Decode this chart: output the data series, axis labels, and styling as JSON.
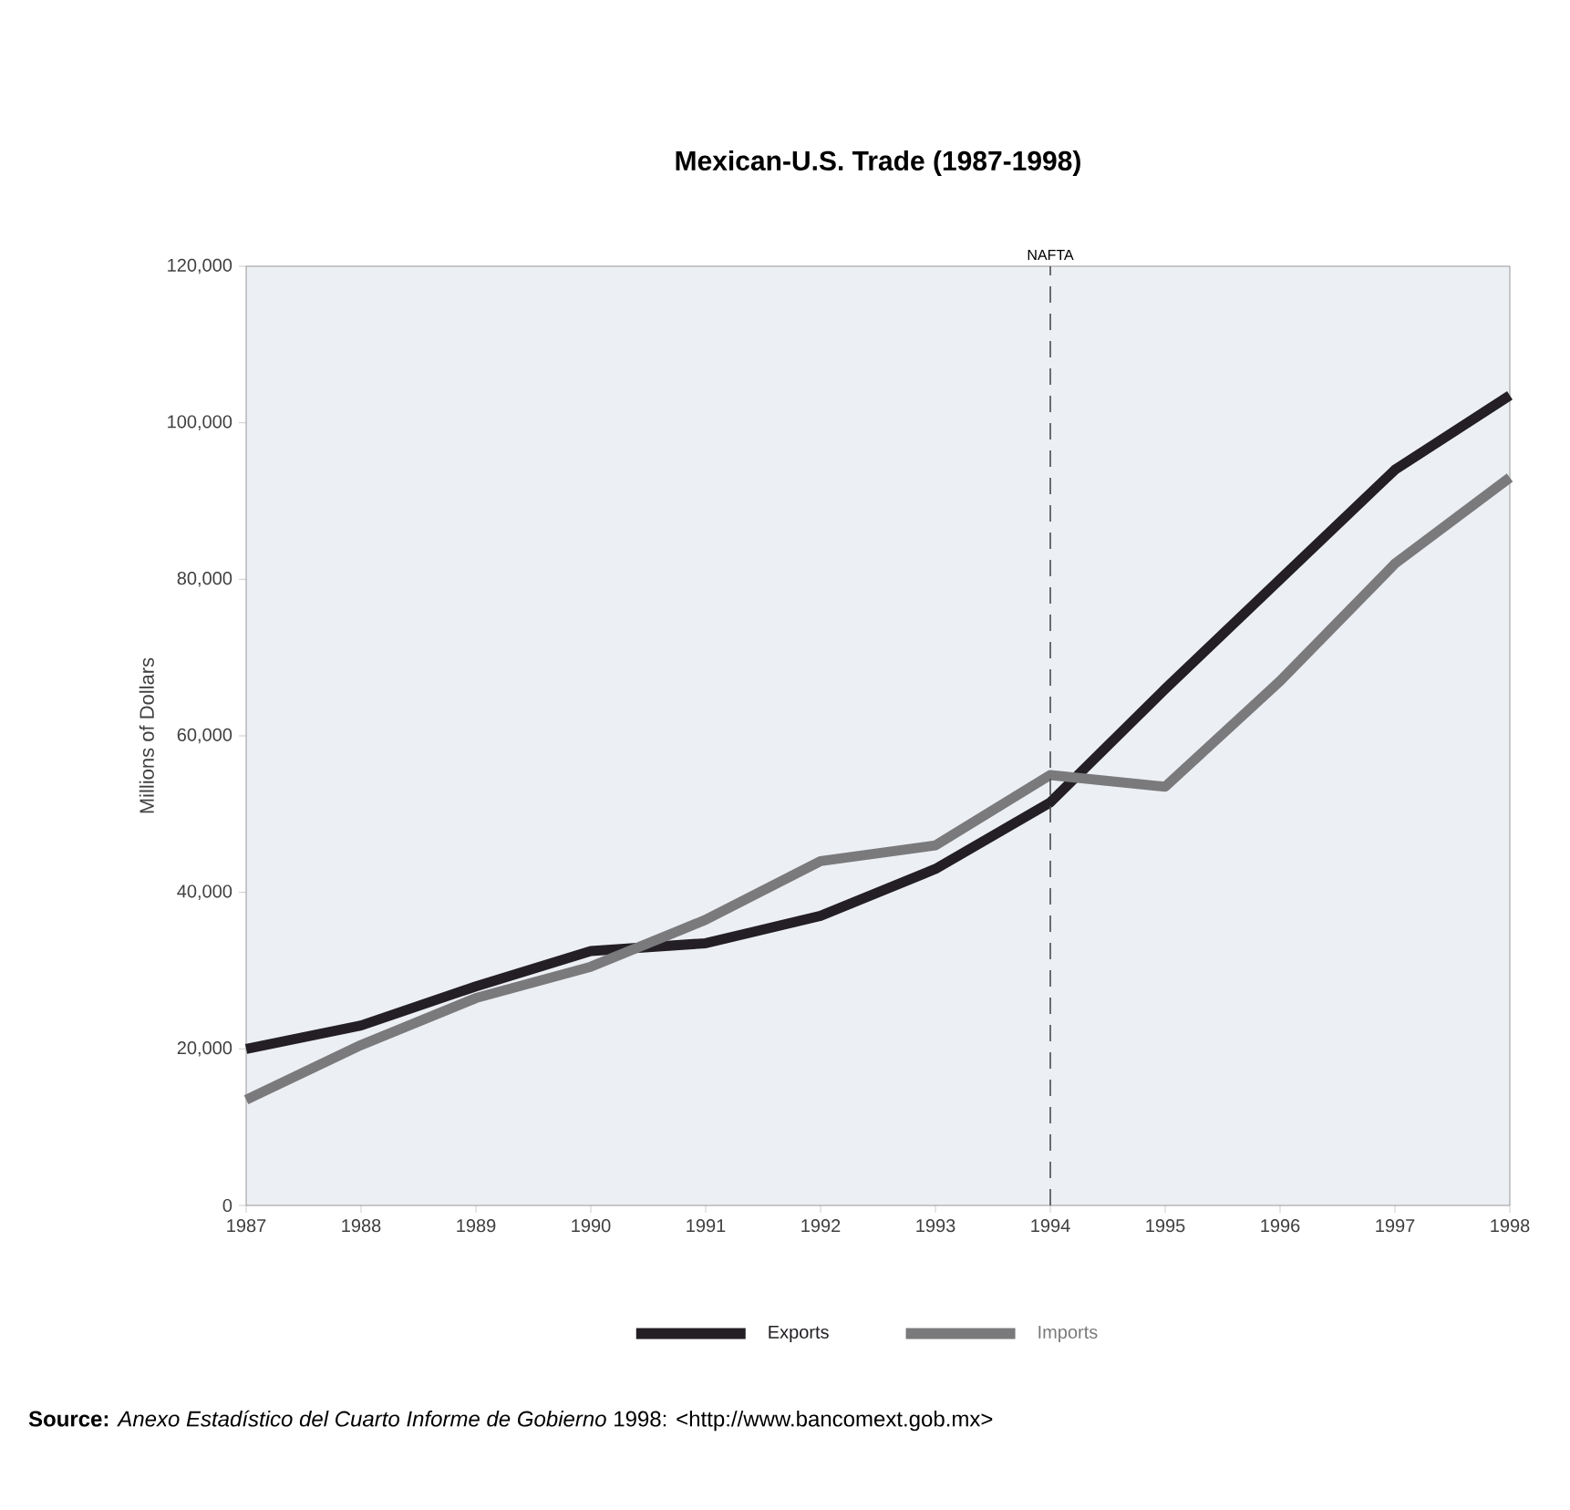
{
  "chart_data": {
    "type": "line",
    "title": "Mexican-U.S. Trade (1987-1998)",
    "ylabel": "Millions of Dollars",
    "categories": [
      "1987",
      "1988",
      "1989",
      "1990",
      "1991",
      "1992",
      "1993",
      "1994",
      "1995",
      "1996",
      "1997",
      "1998"
    ],
    "series": [
      {
        "name": "Exports",
        "color": "#231f24",
        "values": [
          20000,
          23000,
          28000,
          32500,
          33500,
          37000,
          43000,
          51500,
          66000,
          80000,
          94000,
          103500
        ]
      },
      {
        "name": "Imports",
        "color": "#7a7a7c",
        "values": [
          13500,
          20500,
          26500,
          30500,
          36500,
          44000,
          46000,
          55000,
          53500,
          67000,
          82000,
          93000
        ]
      }
    ],
    "ylim": [
      0,
      120000
    ],
    "yticks": [
      0,
      {
        "value": 20000,
        "label": "20,000"
      },
      {
        "value": 40000,
        "label": "40,000"
      },
      {
        "value": 60000,
        "label": "60,000"
      },
      {
        "value": 80000,
        "label": "80,000"
      },
      {
        "value": 100000,
        "label": "100,000"
      },
      {
        "value": 120000,
        "label": "120,000"
      }
    ],
    "ref_lines": [
      {
        "axis": "x",
        "value": "1994",
        "label": "NAFTA",
        "line_style": "dashed"
      }
    ],
    "grid": false,
    "legend": "bottom",
    "marker": "none",
    "line_style": "solid",
    "annotations": [
      "**Source:** *Anexo Estadístico del Cuarto Informe de Gobierno* 1998: <http://www.bancomext.gob.mx>"
    ]
  }
}
